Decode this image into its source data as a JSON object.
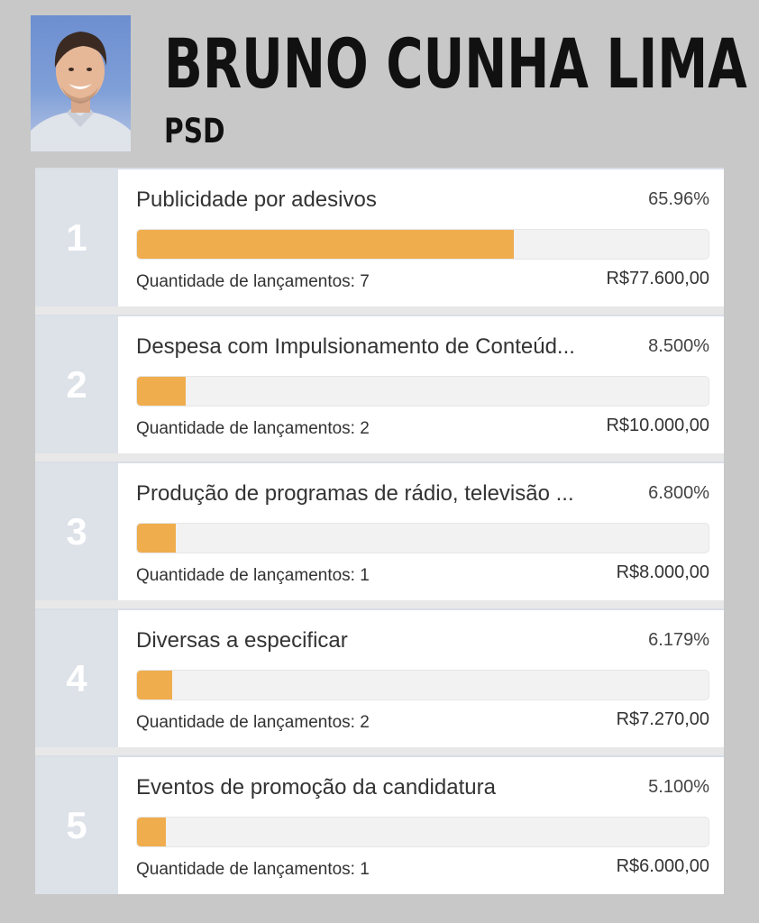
{
  "candidate": {
    "name": "BRUNO CUNHA LIMA",
    "party": "PSD"
  },
  "count_prefix": "Quantidade de lançamentos: ",
  "colors": {
    "background": "#c8c8c8",
    "bar_fill": "#f0ad4e",
    "bar_track": "#f2f2f2",
    "rank_bg": "#dde1e8"
  },
  "items": [
    {
      "rank": "1",
      "label": "Publicidade por adesivos",
      "percent_label": "65.96%",
      "percent": 65.96,
      "count_text": "Quantidade de lançamentos: 7",
      "amount": "R$77.600,00"
    },
    {
      "rank": "2",
      "label": "Despesa com Impulsionamento de Conteúd...",
      "percent_label": "8.500%",
      "percent": 8.5,
      "count_text": "Quantidade de lançamentos: 2",
      "amount": "R$10.000,00"
    },
    {
      "rank": "3",
      "label": "Produção de programas de rádio, televisão ...",
      "percent_label": "6.800%",
      "percent": 6.8,
      "count_text": "Quantidade de lançamentos: 1",
      "amount": "R$8.000,00"
    },
    {
      "rank": "4",
      "label": "Diversas a especificar",
      "percent_label": "6.179%",
      "percent": 6.179,
      "count_text": "Quantidade de lançamentos: 2",
      "amount": "R$7.270,00"
    },
    {
      "rank": "5",
      "label": "Eventos de promoção da candidatura",
      "percent_label": "5.100%",
      "percent": 5.1,
      "count_text": "Quantidade de lançamentos: 1",
      "amount": "R$6.000,00"
    }
  ]
}
